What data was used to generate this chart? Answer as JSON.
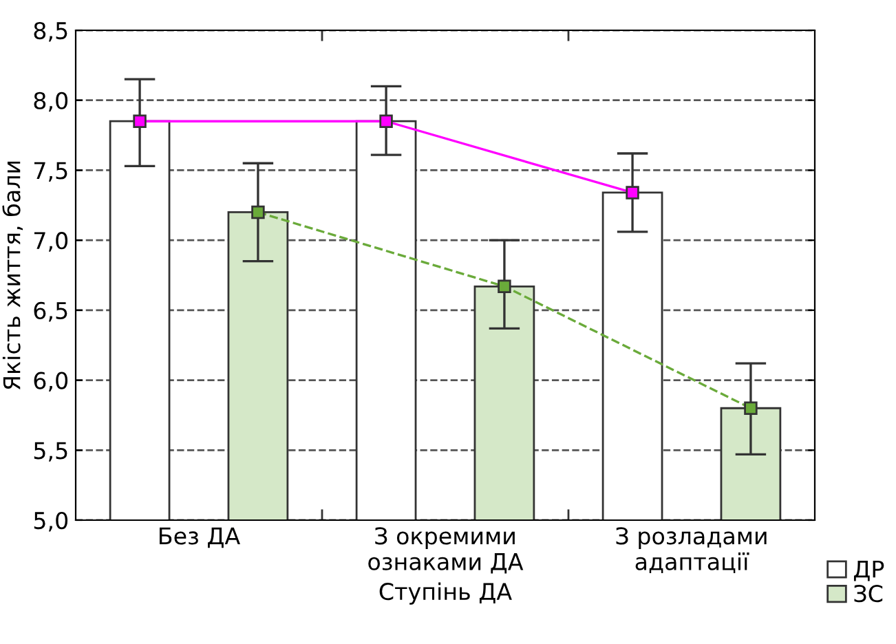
{
  "chart_data": {
    "type": "bar",
    "xlabel": "Ступінь ДА",
    "ylabel": "Якість життя, бали",
    "categories": [
      "Без ДА",
      "З окремими\nознаками ДА",
      "З розладами\nадаптації"
    ],
    "series": [
      {
        "name": "ДР",
        "color": "#ffffff",
        "values": [
          7.85,
          7.85,
          7.34
        ],
        "errors": [
          [
            7.53,
            8.15
          ],
          [
            7.61,
            8.1
          ],
          [
            7.06,
            7.62
          ]
        ]
      },
      {
        "name": "ЗС",
        "color": "#d5e8c8",
        "values": [
          7.2,
          6.67,
          5.8
        ],
        "errors": [
          [
            6.85,
            7.55
          ],
          [
            6.37,
            7.0
          ],
          [
            5.47,
            6.12
          ]
        ]
      },
      {
        "type": "line",
        "color": "#ff00ff",
        "values": [
          7.85,
          7.85,
          7.34
        ],
        "marker": "square",
        "line_style": "solid"
      },
      {
        "type": "line",
        "color": "#6aaa3a",
        "values": [
          7.2,
          6.67,
          5.8
        ],
        "marker": "square",
        "line_style": "dashed"
      }
    ],
    "ylim": [
      5.0,
      8.5
    ],
    "yticks": [
      {
        "value": 5.0,
        "label": "5,0"
      },
      {
        "value": 5.5,
        "label": "5,5"
      },
      {
        "value": 6.0,
        "label": "6,0"
      },
      {
        "value": 6.5,
        "label": "6,5"
      },
      {
        "value": 7.0,
        "label": "7,0"
      },
      {
        "value": 7.5,
        "label": "7,5"
      },
      {
        "value": 8.0,
        "label": "8,0"
      },
      {
        "value": 8.5,
        "label": "8,5"
      }
    ],
    "grid": "y",
    "legend": "bottom right"
  }
}
